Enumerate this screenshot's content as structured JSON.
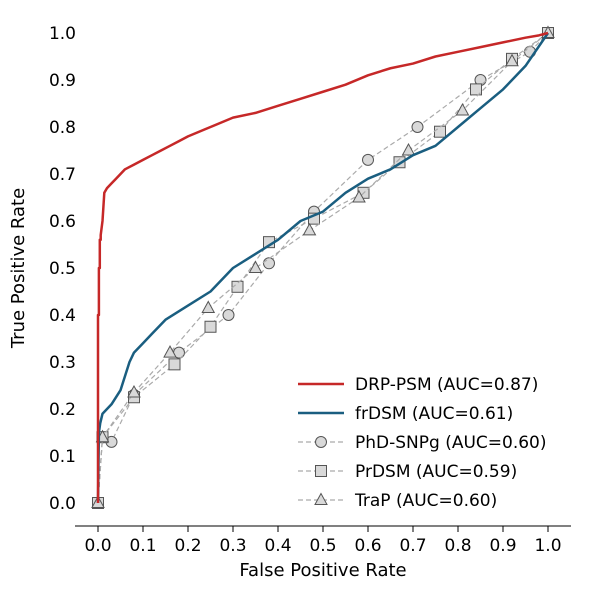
{
  "chart_data": {
    "type": "line",
    "title": "",
    "xlabel": "False Positive Rate",
    "ylabel": "True Positive Rate",
    "xlim": [
      0.0,
      1.0
    ],
    "ylim": [
      0.0,
      1.0
    ],
    "xticks": [
      "0.0",
      "0.1",
      "0.2",
      "0.3",
      "0.4",
      "0.5",
      "0.6",
      "0.7",
      "0.8",
      "0.9",
      "1.0"
    ],
    "yticks": [
      "0.0",
      "0.1",
      "0.2",
      "0.3",
      "0.4",
      "0.5",
      "0.6",
      "0.7",
      "0.8",
      "0.9",
      "1.0"
    ],
    "grid": false,
    "legend_position": "bottom-right",
    "series": [
      {
        "name": "DRP-PSM (AUC=0.87)",
        "color": "#c62828",
        "style": "solid",
        "marker": "none",
        "x": [
          0,
          0,
          0.002,
          0.002,
          0.004,
          0.004,
          0.006,
          0.006,
          0.01,
          0.012,
          0.014,
          0.02,
          0.025,
          0.03,
          0.04,
          0.05,
          0.06,
          0.08,
          0.1,
          0.12,
          0.14,
          0.16,
          0.18,
          0.2,
          0.25,
          0.3,
          0.35,
          0.4,
          0.45,
          0.5,
          0.55,
          0.6,
          0.65,
          0.7,
          0.75,
          0.8,
          0.85,
          0.9,
          0.95,
          0.98,
          1.0
        ],
        "y": [
          0.0,
          0.4,
          0.4,
          0.5,
          0.5,
          0.56,
          0.56,
          0.57,
          0.6,
          0.63,
          0.66,
          0.67,
          0.675,
          0.68,
          0.69,
          0.7,
          0.71,
          0.72,
          0.73,
          0.74,
          0.75,
          0.76,
          0.77,
          0.78,
          0.8,
          0.82,
          0.83,
          0.845,
          0.86,
          0.875,
          0.89,
          0.91,
          0.925,
          0.935,
          0.95,
          0.96,
          0.97,
          0.98,
          0.99,
          0.995,
          1.0
        ]
      },
      {
        "name": "frDSM (AUC=0.61)",
        "color": "#1a5e80",
        "style": "solid",
        "marker": "none",
        "x": [
          0,
          0.002,
          0.005,
          0.01,
          0.02,
          0.03,
          0.05,
          0.06,
          0.07,
          0.08,
          0.1,
          0.12,
          0.15,
          0.2,
          0.25,
          0.3,
          0.35,
          0.4,
          0.45,
          0.5,
          0.55,
          0.6,
          0.65,
          0.7,
          0.75,
          0.8,
          0.85,
          0.9,
          0.95,
          1.0
        ],
        "y": [
          0.0,
          0.15,
          0.17,
          0.19,
          0.2,
          0.21,
          0.24,
          0.27,
          0.3,
          0.32,
          0.34,
          0.36,
          0.39,
          0.42,
          0.45,
          0.5,
          0.53,
          0.56,
          0.6,
          0.62,
          0.66,
          0.69,
          0.71,
          0.74,
          0.76,
          0.8,
          0.84,
          0.88,
          0.93,
          1.0
        ]
      },
      {
        "name": "PhD-SNPg (AUC=0.60)",
        "color": "#aaaaaa",
        "style": "dashed",
        "marker": "circle",
        "x": [
          0.0,
          0.01,
          0.03,
          0.08,
          0.18,
          0.29,
          0.38,
          0.48,
          0.6,
          0.71,
          0.85,
          0.96,
          1.0
        ],
        "y": [
          0.0,
          0.14,
          0.13,
          0.23,
          0.32,
          0.4,
          0.51,
          0.62,
          0.73,
          0.8,
          0.9,
          0.96,
          1.0
        ]
      },
      {
        "name": "PrDSM (AUC=0.59)",
        "color": "#aaaaaa",
        "style": "dashed",
        "marker": "square",
        "x": [
          0.0,
          0.01,
          0.08,
          0.17,
          0.25,
          0.31,
          0.38,
          0.48,
          0.59,
          0.67,
          0.76,
          0.84,
          0.92,
          1.0
        ],
        "y": [
          0.0,
          0.14,
          0.225,
          0.295,
          0.375,
          0.46,
          0.555,
          0.605,
          0.66,
          0.725,
          0.79,
          0.88,
          0.945,
          1.0
        ]
      },
      {
        "name": "TraP (AUC=0.60)",
        "color": "#aaaaaa",
        "style": "dashed",
        "marker": "triangle",
        "x": [
          0.0,
          0.01,
          0.08,
          0.16,
          0.245,
          0.35,
          0.47,
          0.58,
          0.69,
          0.81,
          0.92,
          1.0
        ],
        "y": [
          0.0,
          0.14,
          0.235,
          0.32,
          0.415,
          0.5,
          0.58,
          0.65,
          0.75,
          0.835,
          0.94,
          1.0
        ]
      }
    ]
  }
}
